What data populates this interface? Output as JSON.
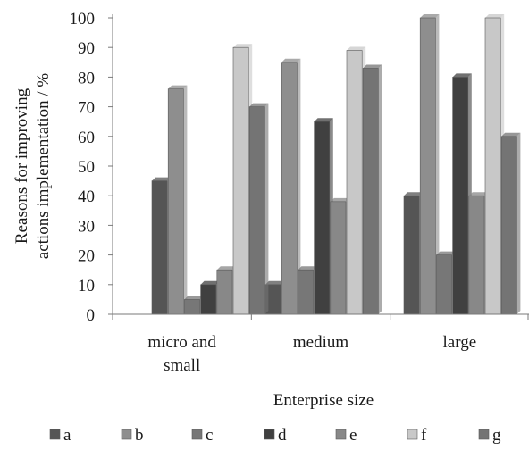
{
  "chart_data": {
    "type": "bar",
    "xlabel": "Enterprise size",
    "ylabel_lines": [
      "Reasons for improving",
      "actions implementation / %"
    ],
    "ylim": [
      0,
      100
    ],
    "yticks": [
      0,
      10,
      20,
      30,
      40,
      50,
      60,
      70,
      80,
      90,
      100
    ],
    "categories": [
      {
        "lines": [
          "micro and",
          "small"
        ]
      },
      {
        "lines": [
          "medium"
        ]
      },
      {
        "lines": [
          "large"
        ]
      }
    ],
    "series": [
      {
        "name": "a",
        "color": "#555555",
        "values": [
          45,
          10,
          40
        ]
      },
      {
        "name": "b",
        "color": "#8e8e8e",
        "values": [
          76,
          85,
          100
        ]
      },
      {
        "name": "c",
        "color": "#777777",
        "values": [
          5,
          15,
          20
        ]
      },
      {
        "name": "d",
        "color": "#404040",
        "values": [
          10,
          65,
          80
        ]
      },
      {
        "name": "e",
        "color": "#888888",
        "values": [
          15,
          38,
          40
        ]
      },
      {
        "name": "f",
        "color": "#c8c8c8",
        "values": [
          90,
          89,
          100
        ]
      },
      {
        "name": "g",
        "color": "#747474",
        "values": [
          70,
          83,
          60
        ]
      }
    ],
    "grid": false,
    "legend_position": "bottom"
  }
}
